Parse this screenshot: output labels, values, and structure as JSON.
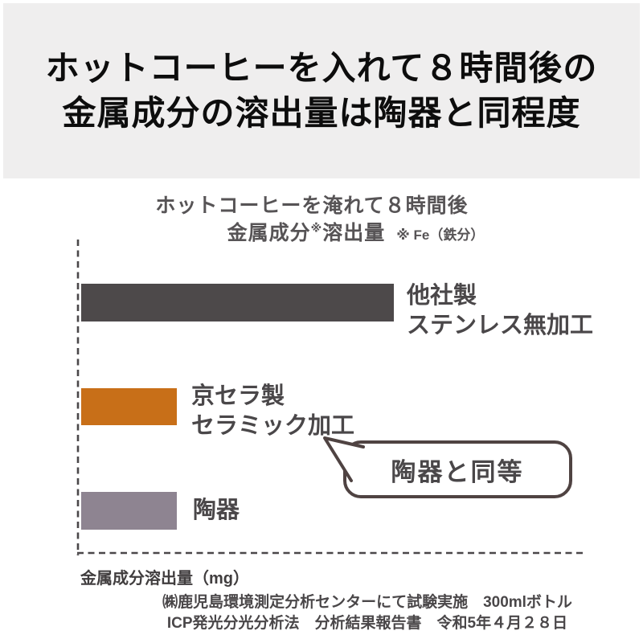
{
  "header": {
    "bg_color": "#efeeee",
    "title_line1": "ホットコーヒーを入れて８時間後の",
    "title_line2": "金属成分の溶出量は陶器と同程度"
  },
  "chart_header": {
    "line1": "ホットコーヒーを淹れて８時間後",
    "line2_part1": "金属成分",
    "line2_sup": "※",
    "line2_part2": "溶出量",
    "line2_note": "※ Fe（鉄分）"
  },
  "chart_data": {
    "type": "bar",
    "orientation": "horizontal",
    "title": "ホットコーヒーを淹れて８時間後 金属成分※溶出量（※は Fe 鉄分）",
    "xlabel": "金属成分溶出量（mg）",
    "value_labels_shown": false,
    "axis_ticks": [],
    "axis_style": "dashed",
    "axis_color": "#4a4749",
    "bars": [
      {
        "label": [
          "他社製",
          "ステンレス無加工"
        ],
        "relative_value": 3.27,
        "color": "#4d494a"
      },
      {
        "label": [
          "京セラ製",
          "セラミック加工"
        ],
        "relative_value": 1.0,
        "color": "#c86f18"
      },
      {
        "label": [
          "陶器"
        ],
        "relative_value": 1.0,
        "color": "#8e8491"
      }
    ],
    "annotation": {
      "text": "陶器と同等",
      "points_at": "京セラ製 セラミック加工"
    }
  },
  "footer": {
    "credit_line1": "㈱鹿児島環境測定分析センターにて試験実施　300mlボトル",
    "credit_line2": "ICP発光分光分析法　分析結果報告書　令和5年４月２８日"
  }
}
